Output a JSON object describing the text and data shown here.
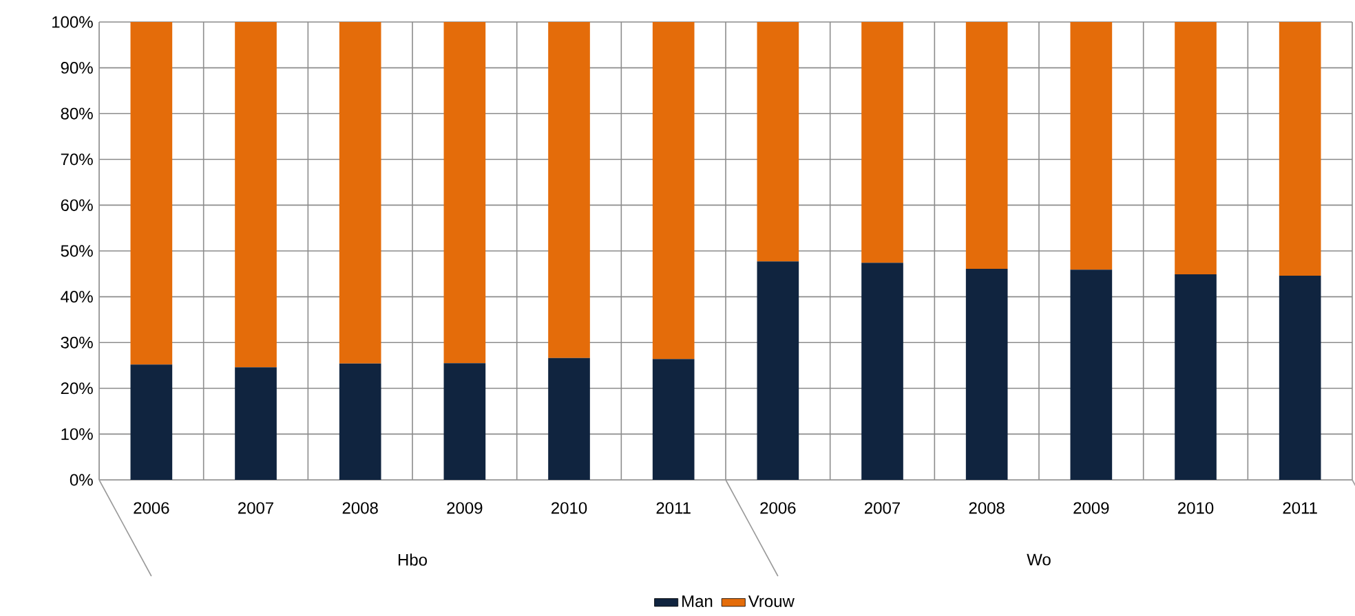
{
  "chart_data": {
    "type": "bar",
    "stacked": true,
    "categories": [
      "2006",
      "2007",
      "2008",
      "2009",
      "2010",
      "2011",
      "2006",
      "2007",
      "2008",
      "2009",
      "2010",
      "2011"
    ],
    "annotations": [
      "Hbo",
      "Wo"
    ],
    "series": [
      {
        "name": "Man",
        "color": "#10243f",
        "values": [
          25.2,
          24.6,
          25.4,
          25.5,
          26.6,
          26.4,
          47.7,
          47.4,
          46.1,
          45.9,
          44.9,
          44.6
        ]
      },
      {
        "name": "Vrouw",
        "color": "#e46c0a",
        "values": [
          74.8,
          75.4,
          74.6,
          74.5,
          73.4,
          73.6,
          52.3,
          52.6,
          53.9,
          54.1,
          55.1,
          55.4
        ]
      }
    ],
    "ylim": [
      0,
      100
    ],
    "yticks": [
      {
        "value": 0,
        "label": "0%"
      },
      {
        "value": 10,
        "label": "10%"
      },
      {
        "value": 20,
        "label": "20%"
      },
      {
        "value": 30,
        "label": "30%"
      },
      {
        "value": 40,
        "label": "40%"
      },
      {
        "value": 50,
        "label": "50%"
      },
      {
        "value": 60,
        "label": "60%"
      },
      {
        "value": 70,
        "label": "70%"
      },
      {
        "value": 80,
        "label": "80%"
      },
      {
        "value": 90,
        "label": "90%"
      },
      {
        "value": 100,
        "label": "100%"
      }
    ],
    "grid": true,
    "legend": "bottom"
  }
}
